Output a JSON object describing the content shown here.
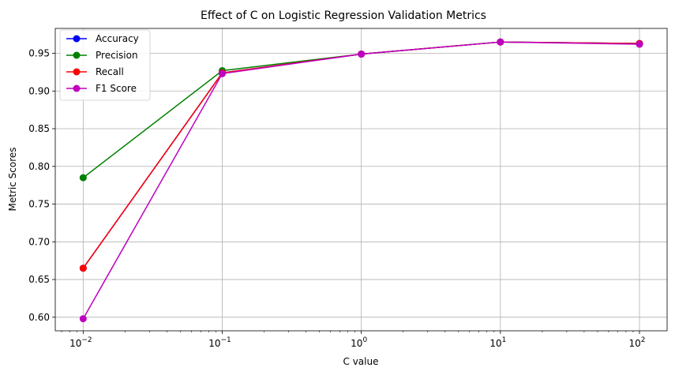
{
  "chart_data": {
    "type": "line",
    "title": "Effect of C on Logistic Regression Validation Metrics",
    "xlabel": "C value",
    "ylabel": "Metric Scores",
    "xscale": "log",
    "x": [
      0.01,
      0.1,
      1,
      10,
      100
    ],
    "x_tick_labels": [
      {
        "base": "10",
        "exp": "−2"
      },
      {
        "base": "10",
        "exp": "−1"
      },
      {
        "base": "10",
        "exp": "0"
      },
      {
        "base": "10",
        "exp": "1"
      },
      {
        "base": "10",
        "exp": "2"
      }
    ],
    "y_ticks": [
      0.6,
      0.65,
      0.7,
      0.75,
      0.8,
      0.85,
      0.9,
      0.95
    ],
    "y_tick_labels": [
      "0.60",
      "0.65",
      "0.70",
      "0.75",
      "0.80",
      "0.85",
      "0.90",
      "0.95"
    ],
    "xlim": [
      0.0063,
      158
    ],
    "ylim": [
      0.582,
      0.983
    ],
    "grid": true,
    "legend_position": "top-left",
    "series": [
      {
        "name": "Accuracy",
        "color": "#0000ff",
        "values": [
          0.665,
          0.924,
          0.949,
          0.965,
          0.963
        ]
      },
      {
        "name": "Precision",
        "color": "#008000",
        "values": [
          0.785,
          0.927,
          0.949,
          0.965,
          0.963
        ]
      },
      {
        "name": "Recall",
        "color": "#ff0000",
        "values": [
          0.665,
          0.924,
          0.949,
          0.965,
          0.963
        ]
      },
      {
        "name": "F1 Score",
        "color": "#bf00bf",
        "values": [
          0.598,
          0.923,
          0.949,
          0.965,
          0.962
        ]
      }
    ]
  }
}
